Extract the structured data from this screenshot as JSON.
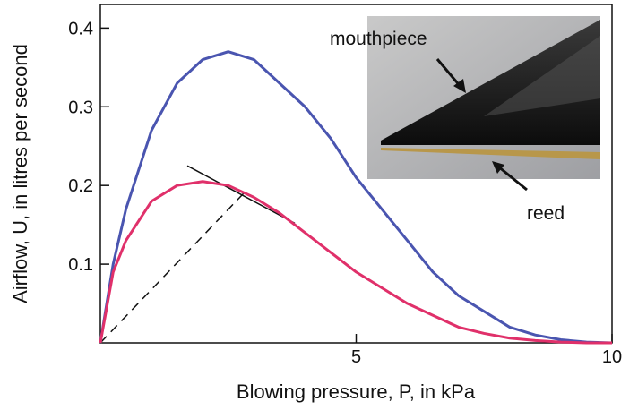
{
  "chart_data": {
    "type": "line",
    "x_label": "Blowing pressure, P, in kPa",
    "y_label": "Airflow, U, in litres per second",
    "x": [
      0,
      0.25,
      0.5,
      1,
      1.5,
      2,
      2.5,
      3,
      3.5,
      4,
      4.5,
      5,
      5.5,
      6,
      6.5,
      7,
      7.5,
      8,
      8.5,
      9,
      9.5,
      10
    ],
    "series": [
      {
        "color": "#4a55b0",
        "values": [
          0,
          0.1,
          0.17,
          0.27,
          0.33,
          0.36,
          0.37,
          0.36,
          0.33,
          0.3,
          0.26,
          0.21,
          0.17,
          0.13,
          0.09,
          0.06,
          0.04,
          0.02,
          0.01,
          0.004,
          0.001,
          0
        ]
      },
      {
        "color": "#e0306a",
        "values": [
          0,
          0.09,
          0.13,
          0.18,
          0.2,
          0.205,
          0.2,
          0.185,
          0.165,
          0.14,
          0.115,
          0.09,
          0.07,
          0.05,
          0.035,
          0.02,
          0.012,
          0.006,
          0.003,
          0.001,
          0,
          0
        ]
      }
    ],
    "reference_lines": [
      {
        "x": [
          0,
          2.8
        ],
        "values": [
          0,
          0.19
        ],
        "dashed": true,
        "color": "#111111"
      },
      {
        "x": [
          1.7,
          3.8
        ],
        "values": [
          0.225,
          0.152
        ],
        "dashed": false,
        "color": "#111111"
      }
    ],
    "xlim": [
      0,
      10
    ],
    "ylim": [
      0,
      0.43
    ],
    "xticks": [
      5,
      10
    ],
    "yticks": [
      0.1,
      0.2,
      0.3,
      0.4
    ],
    "annotations": [
      "mouthpiece",
      "reed"
    ]
  }
}
